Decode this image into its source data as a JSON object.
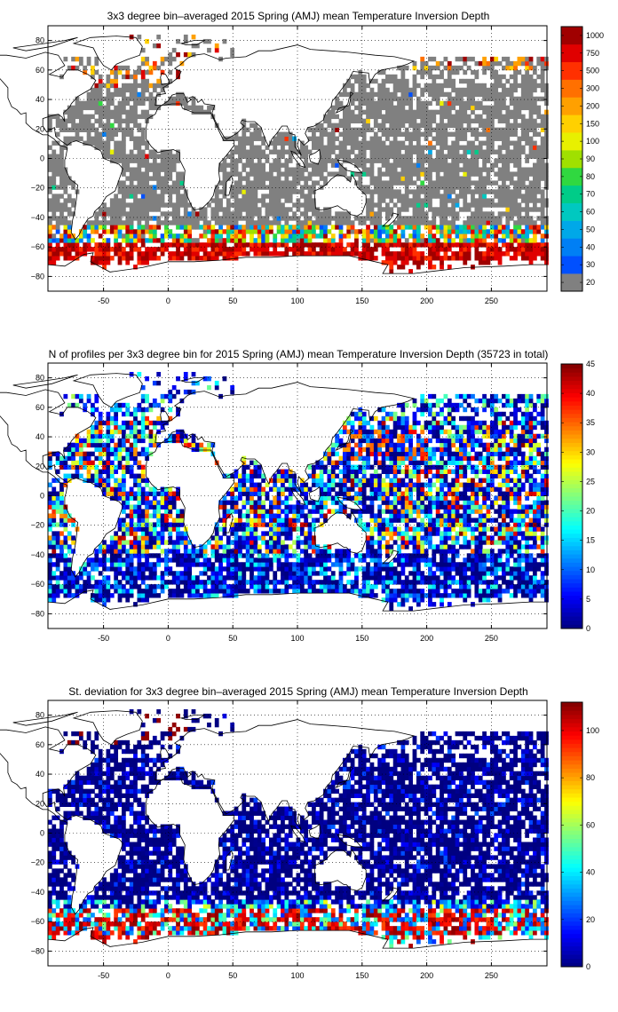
{
  "chart_data": [
    {
      "type": "heatmap",
      "title": "3x3 degree bin–averaged 2015 Spring (AMJ) mean Temperature Inversion Depth",
      "xlabel": "",
      "ylabel": "",
      "xlim": [
        -93,
        293
      ],
      "ylim": [
        -90,
        90
      ],
      "x_ticks": [
        "-50",
        "0",
        "50",
        "100",
        "150",
        "200",
        "250"
      ],
      "x_tick_values": [
        -50,
        0,
        50,
        100,
        150,
        200,
        250
      ],
      "y_ticks": [
        "80",
        "60",
        "40",
        "20",
        "0",
        "−20",
        "−40",
        "−60",
        "−80"
      ],
      "y_tick_values": [
        80,
        60,
        40,
        20,
        0,
        -20,
        -40,
        -60,
        -80
      ],
      "grid": true,
      "colorbar": {
        "scale": "categorical",
        "labels": [
          "20",
          "30",
          "40",
          "50",
          "60",
          "70",
          "80",
          "90",
          "100",
          "150",
          "200",
          "300",
          "500",
          "750",
          "1000"
        ],
        "colors": [
          "#808080",
          "#0050ff",
          "#007ff5",
          "#00a8e8",
          "#00c8c0",
          "#00cc88",
          "#30d840",
          "#a0e000",
          "#e8f000",
          "#ffd000",
          "#ffa000",
          "#ff7000",
          "#ff3000",
          "#e00000",
          "#a00000"
        ]
      },
      "pattern": "depth"
    },
    {
      "type": "heatmap",
      "title": "N of profiles per 3x3 degree bin for 2015 Spring (AMJ) mean Temperature Inversion Depth  (35723 in total)",
      "xlabel": "",
      "ylabel": "",
      "xlim": [
        -93,
        293
      ],
      "ylim": [
        -90,
        90
      ],
      "x_ticks": [
        "-50",
        "0",
        "50",
        "100",
        "150",
        "200",
        "250"
      ],
      "x_tick_values": [
        -50,
        0,
        50,
        100,
        150,
        200,
        250
      ],
      "y_ticks": [
        "80",
        "60",
        "40",
        "20",
        "0",
        "−20",
        "−40",
        "−60",
        "−80"
      ],
      "y_tick_values": [
        80,
        60,
        40,
        20,
        0,
        -20,
        -40,
        -60,
        -80
      ],
      "grid": true,
      "colorbar": {
        "scale": "jet",
        "min": 0,
        "max": 45,
        "labels": [
          "0",
          "5",
          "10",
          "15",
          "20",
          "25",
          "30",
          "35",
          "40",
          "45"
        ],
        "label_values": [
          0,
          5,
          10,
          15,
          20,
          25,
          30,
          35,
          40,
          45
        ]
      },
      "pattern": "count"
    },
    {
      "type": "heatmap",
      "title": "St. deviation for 3x3 degree bin–averaged 2015 Spring (AMJ) mean Temperature Inversion Depth",
      "xlabel": "",
      "ylabel": "",
      "xlim": [
        -93,
        293
      ],
      "ylim": [
        -90,
        90
      ],
      "x_ticks": [
        "-50",
        "0",
        "50",
        "100",
        "150",
        "200",
        "250"
      ],
      "x_tick_values": [
        -50,
        0,
        50,
        100,
        150,
        200,
        250
      ],
      "y_ticks": [
        "80",
        "60",
        "40",
        "20",
        "0",
        "−20",
        "−40",
        "−60",
        "−80"
      ],
      "y_tick_values": [
        80,
        60,
        40,
        20,
        0,
        -20,
        -40,
        -60,
        -80
      ],
      "grid": true,
      "colorbar": {
        "scale": "jet",
        "min": 0,
        "max": 112,
        "labels": [
          "0",
          "20",
          "40",
          "60",
          "80",
          "100"
        ],
        "label_values": [
          0,
          20,
          40,
          60,
          80,
          100
        ]
      },
      "pattern": "std"
    }
  ]
}
